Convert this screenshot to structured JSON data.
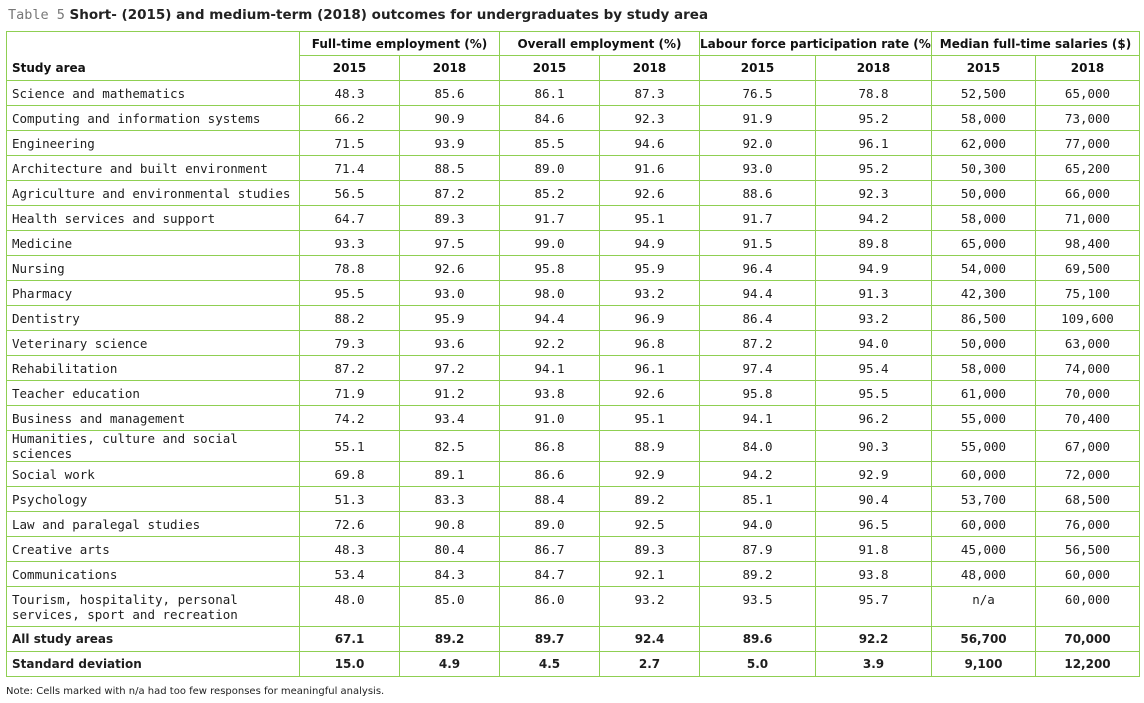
{
  "caption": {
    "label": "Table 5",
    "title": "Short- (2015) and medium-term (2018) outcomes for undergraduates by study area"
  },
  "table": {
    "row_header_label": "Study area",
    "groups": [
      {
        "label": "Full-time employment (%)",
        "years": [
          "2015",
          "2018"
        ]
      },
      {
        "label": "Overall employment (%)",
        "years": [
          "2015",
          "2018"
        ]
      },
      {
        "label": "Labour force participation rate (%)",
        "years": [
          "2015",
          "2018"
        ]
      },
      {
        "label": "Median full-time salaries ($)",
        "years": [
          "2015",
          "2018"
        ]
      }
    ],
    "rows": [
      {
        "area": "Science and mathematics",
        "values": [
          "48.3",
          "85.6",
          "86.1",
          "87.3",
          "76.5",
          "78.8",
          "52,500",
          "65,000"
        ]
      },
      {
        "area": "Computing and information systems",
        "values": [
          "66.2",
          "90.9",
          "84.6",
          "92.3",
          "91.9",
          "95.2",
          "58,000",
          "73,000"
        ]
      },
      {
        "area": "Engineering",
        "values": [
          "71.5",
          "93.9",
          "85.5",
          "94.6",
          "92.0",
          "96.1",
          "62,000",
          "77,000"
        ]
      },
      {
        "area": "Architecture and built environment",
        "values": [
          "71.4",
          "88.5",
          "89.0",
          "91.6",
          "93.0",
          "95.2",
          "50,300",
          "65,200"
        ]
      },
      {
        "area": "Agriculture and environmental studies",
        "values": [
          "56.5",
          "87.2",
          "85.2",
          "92.6",
          "88.6",
          "92.3",
          "50,000",
          "66,000"
        ]
      },
      {
        "area": "Health services and support",
        "values": [
          "64.7",
          "89.3",
          "91.7",
          "95.1",
          "91.7",
          "94.2",
          "58,000",
          "71,000"
        ]
      },
      {
        "area": "Medicine",
        "values": [
          "93.3",
          "97.5",
          "99.0",
          "94.9",
          "91.5",
          "89.8",
          "65,000",
          "98,400"
        ]
      },
      {
        "area": "Nursing",
        "values": [
          "78.8",
          "92.6",
          "95.8",
          "95.9",
          "96.4",
          "94.9",
          "54,000",
          "69,500"
        ]
      },
      {
        "area": "Pharmacy",
        "values": [
          "95.5",
          "93.0",
          "98.0",
          "93.2",
          "94.4",
          "91.3",
          "42,300",
          "75,100"
        ]
      },
      {
        "area": "Dentistry",
        "values": [
          "88.2",
          "95.9",
          "94.4",
          "96.9",
          "86.4",
          "93.2",
          "86,500",
          "109,600"
        ]
      },
      {
        "area": "Veterinary science",
        "values": [
          "79.3",
          "93.6",
          "92.2",
          "96.8",
          "87.2",
          "94.0",
          "50,000",
          "63,000"
        ]
      },
      {
        "area": "Rehabilitation",
        "values": [
          "87.2",
          "97.2",
          "94.1",
          "96.1",
          "97.4",
          "95.4",
          "58,000",
          "74,000"
        ]
      },
      {
        "area": "Teacher education",
        "values": [
          "71.9",
          "91.2",
          "93.8",
          "92.6",
          "95.8",
          "95.5",
          "61,000",
          "70,000"
        ]
      },
      {
        "area": "Business and management",
        "values": [
          "74.2",
          "93.4",
          "91.0",
          "95.1",
          "94.1",
          "96.2",
          "55,000",
          "70,400"
        ]
      },
      {
        "area": "Humanities, culture and social sciences",
        "values": [
          "55.1",
          "82.5",
          "86.8",
          "88.9",
          "84.0",
          "90.3",
          "55,000",
          "67,000"
        ]
      },
      {
        "area": "Social work",
        "values": [
          "69.8",
          "89.1",
          "86.6",
          "92.9",
          "94.2",
          "92.9",
          "60,000",
          "72,000"
        ]
      },
      {
        "area": "Psychology",
        "values": [
          "51.3",
          "83.3",
          "88.4",
          "89.2",
          "85.1",
          "90.4",
          "53,700",
          "68,500"
        ]
      },
      {
        "area": "Law and paralegal studies",
        "values": [
          "72.6",
          "90.8",
          "89.0",
          "92.5",
          "94.0",
          "96.5",
          "60,000",
          "76,000"
        ]
      },
      {
        "area": "Creative arts",
        "values": [
          "48.3",
          "80.4",
          "86.7",
          "89.3",
          "87.9",
          "91.8",
          "45,000",
          "56,500"
        ]
      },
      {
        "area": "Communications",
        "values": [
          "53.4",
          "84.3",
          "84.7",
          "92.1",
          "89.2",
          "93.8",
          "48,000",
          "60,000"
        ]
      },
      {
        "area": "Tourism, hospitality, personal services, sport and recreation",
        "values": [
          "48.0",
          "85.0",
          "86.0",
          "93.2",
          "93.5",
          "95.7",
          "n/a",
          "60,000"
        ]
      }
    ],
    "totals": [
      {
        "area": "All study areas",
        "values": [
          "67.1",
          "89.2",
          "89.7",
          "92.4",
          "89.6",
          "92.2",
          "56,700",
          "70,000"
        ]
      },
      {
        "area": "Standard deviation",
        "values": [
          "15.0",
          "4.9",
          "4.5",
          "2.7",
          "5.0",
          "3.9",
          "9,100",
          "12,200"
        ]
      }
    ]
  },
  "note": "Note: Cells marked with n/a had too few responses for meaningful analysis.",
  "colors": {
    "grid_border": "#8fcf52",
    "caption_label": "#777777",
    "text": "#1a1a1a"
  }
}
